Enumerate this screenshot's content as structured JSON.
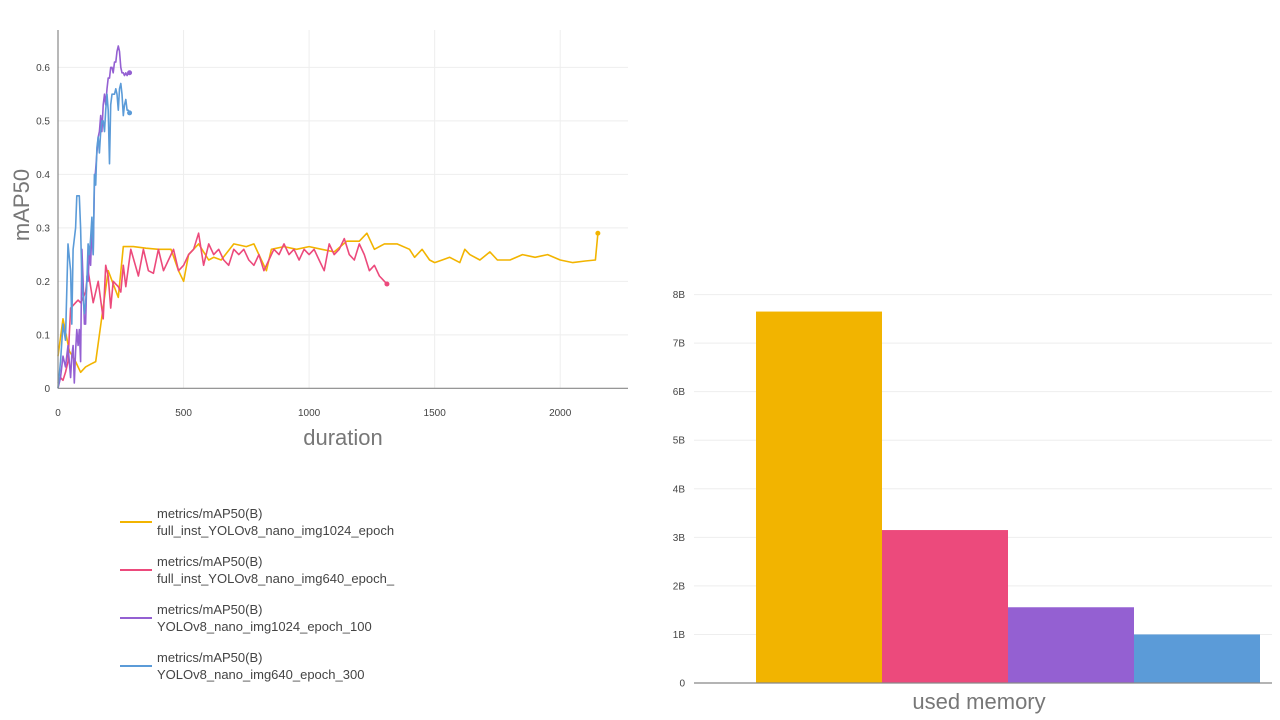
{
  "chart_data": [
    {
      "type": "line",
      "xlabel": "duration",
      "ylabel": "mAP50",
      "xlim": [
        0,
        2270
      ],
      "ylim": [
        -0.02,
        0.67
      ],
      "xticks": [
        0,
        500,
        1000,
        1500,
        2000
      ],
      "yticks": [
        0,
        0.1,
        0.2,
        0.3,
        0.4,
        0.5,
        0.6
      ],
      "grid": true,
      "legend": "bottom",
      "series": [
        {
          "name": "metrics/mAP50(B)",
          "run": "full_inst_YOLOv8_nano_img1024_epoch",
          "color": "#f2b400",
          "x": [
            0,
            20,
            45,
            70,
            90,
            110,
            130,
            150,
            200,
            240,
            260,
            300,
            350,
            400,
            450,
            480,
            500,
            520,
            560,
            600,
            620,
            650,
            700,
            750,
            780,
            800,
            830,
            850,
            900,
            950,
            1000,
            1050,
            1100,
            1150,
            1200,
            1230,
            1260,
            1300,
            1350,
            1400,
            1420,
            1450,
            1480,
            1500,
            1530,
            1560,
            1600,
            1620,
            1640,
            1680,
            1720,
            1750,
            1800,
            1850,
            1900,
            1950,
            2000,
            2050,
            2100,
            2140,
            2150
          ],
          "y": [
            0.06,
            0.13,
            0.07,
            0.05,
            0.03,
            0.04,
            0.045,
            0.05,
            0.22,
            0.17,
            0.265,
            0.265,
            0.262,
            0.26,
            0.26,
            0.22,
            0.2,
            0.25,
            0.27,
            0.24,
            0.245,
            0.24,
            0.27,
            0.265,
            0.27,
            0.25,
            0.22,
            0.26,
            0.265,
            0.26,
            0.265,
            0.26,
            0.255,
            0.275,
            0.275,
            0.29,
            0.26,
            0.27,
            0.27,
            0.26,
            0.245,
            0.26,
            0.24,
            0.235,
            0.24,
            0.245,
            0.235,
            0.26,
            0.25,
            0.24,
            0.255,
            0.24,
            0.24,
            0.25,
            0.245,
            0.25,
            0.24,
            0.235,
            0.238,
            0.24,
            0.29
          ]
        },
        {
          "name": "metrics/mAP50(B)",
          "run": "full_inst_YOLOv8_nano_img640_epoch_",
          "color": "#ec4a7c",
          "x": [
            0,
            10,
            20,
            30,
            40,
            50,
            60,
            70,
            80,
            90,
            100,
            110,
            120,
            140,
            160,
            180,
            190,
            200,
            210,
            220,
            240,
            250,
            260,
            270,
            290,
            320,
            340,
            360,
            380,
            400,
            420,
            440,
            460,
            480,
            500,
            520,
            540,
            560,
            580,
            600,
            620,
            640,
            660,
            680,
            700,
            720,
            740,
            760,
            780,
            800,
            820,
            840,
            860,
            880,
            900,
            920,
            940,
            960,
            980,
            1000,
            1020,
            1040,
            1060,
            1080,
            1100,
            1120,
            1140,
            1160,
            1180,
            1200,
            1220,
            1240,
            1260,
            1280,
            1300,
            1310
          ],
          "y": [
            0.01,
            0.02,
            0.015,
            0.03,
            0.05,
            0.15,
            0.155,
            0.16,
            0.165,
            0.16,
            0.17,
            0.18,
            0.22,
            0.16,
            0.2,
            0.13,
            0.23,
            0.21,
            0.15,
            0.2,
            0.19,
            0.18,
            0.23,
            0.19,
            0.26,
            0.21,
            0.26,
            0.22,
            0.215,
            0.26,
            0.22,
            0.24,
            0.26,
            0.22,
            0.23,
            0.25,
            0.26,
            0.29,
            0.23,
            0.27,
            0.25,
            0.26,
            0.24,
            0.23,
            0.26,
            0.25,
            0.26,
            0.24,
            0.23,
            0.25,
            0.22,
            0.24,
            0.26,
            0.25,
            0.27,
            0.25,
            0.26,
            0.24,
            0.26,
            0.25,
            0.26,
            0.24,
            0.22,
            0.27,
            0.25,
            0.26,
            0.28,
            0.25,
            0.24,
            0.27,
            0.25,
            0.22,
            0.23,
            0.21,
            0.2,
            0.195
          ]
        },
        {
          "name": "metrics/mAP50(B)",
          "run": "YOLOv8_nano_img1024_epoch_100",
          "color": "#9460d2",
          "x": [
            0,
            10,
            20,
            30,
            40,
            50,
            55,
            60,
            65,
            70,
            75,
            80,
            85,
            90,
            95,
            100,
            105,
            110,
            115,
            120,
            125,
            130,
            135,
            140,
            145,
            150,
            155,
            160,
            165,
            170,
            175,
            180,
            185,
            190,
            195,
            200,
            205,
            210,
            215,
            220,
            225,
            230,
            235,
            240,
            245,
            250,
            255,
            260,
            265,
            270,
            275,
            280,
            285
          ],
          "y": [
            0.0,
            0.02,
            0.06,
            0.04,
            0.08,
            0.02,
            0.06,
            0.08,
            0.01,
            0.07,
            0.11,
            0.08,
            0.11,
            0.05,
            0.26,
            0.2,
            0.12,
            0.12,
            0.21,
            0.2,
            0.26,
            0.23,
            0.3,
            0.25,
            0.38,
            0.41,
            0.44,
            0.47,
            0.48,
            0.51,
            0.48,
            0.53,
            0.55,
            0.53,
            0.56,
            0.58,
            0.58,
            0.6,
            0.6,
            0.59,
            0.61,
            0.61,
            0.63,
            0.64,
            0.63,
            0.6,
            0.59,
            0.59,
            0.585,
            0.59,
            0.585,
            0.59,
            0.59
          ]
        },
        {
          "name": "metrics/mAP50(B)",
          "run": "YOLOv8_nano_img640_epoch_300",
          "color": "#5b9bd8",
          "x": [
            0,
            10,
            20,
            30,
            40,
            50,
            55,
            60,
            70,
            75,
            80,
            85,
            90,
            95,
            100,
            105,
            110,
            115,
            120,
            125,
            130,
            135,
            140,
            145,
            150,
            155,
            160,
            165,
            170,
            175,
            180,
            185,
            190,
            195,
            200,
            205,
            210,
            215,
            220,
            225,
            230,
            235,
            240,
            245,
            250,
            255,
            260,
            265,
            270,
            275,
            280,
            285
          ],
          "y": [
            0.0,
            0.05,
            0.12,
            0.09,
            0.27,
            0.22,
            0.12,
            0.26,
            0.3,
            0.36,
            0.36,
            0.36,
            0.3,
            0.2,
            0.17,
            0.14,
            0.16,
            0.2,
            0.27,
            0.25,
            0.28,
            0.32,
            0.25,
            0.4,
            0.38,
            0.45,
            0.47,
            0.44,
            0.48,
            0.5,
            0.5,
            0.48,
            0.52,
            0.55,
            0.52,
            0.42,
            0.53,
            0.55,
            0.55,
            0.55,
            0.56,
            0.55,
            0.52,
            0.56,
            0.57,
            0.55,
            0.51,
            0.53,
            0.54,
            0.52,
            0.52,
            0.515
          ]
        }
      ]
    },
    {
      "type": "bar",
      "xlabel": "used memory",
      "ylim": [
        0,
        8300000000
      ],
      "yticks": [
        0,
        1000000000,
        2000000000,
        3000000000,
        4000000000,
        5000000000,
        6000000000,
        7000000000,
        8000000000
      ],
      "ytick_labels": [
        "0",
        "1B",
        "2B",
        "3B",
        "4B",
        "5B",
        "6B",
        "7B",
        "8B"
      ],
      "grid": true,
      "bars": [
        {
          "value": 7650000000,
          "color": "#f2b400"
        },
        {
          "value": 3150000000,
          "color": "#ec4a7c"
        },
        {
          "value": 1560000000,
          "color": "#9460d2"
        },
        {
          "value": 1000000000,
          "color": "#5b9bd8"
        }
      ]
    }
  ]
}
